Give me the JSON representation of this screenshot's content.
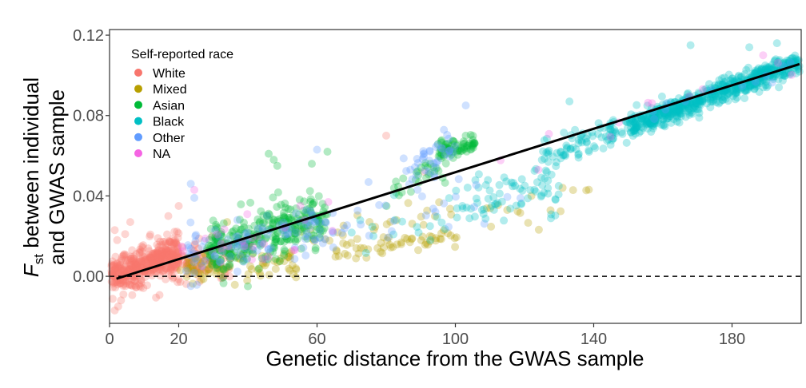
{
  "chart_data": {
    "type": "scatter",
    "title": "",
    "xlabel": "Genetic distance from the GWAS sample",
    "ylabel_main": "F",
    "ylabel_sub": "st",
    "ylabel_rest": " between individual",
    "ylabel_line2": "and GWAS sample",
    "xlim": [
      0,
      200
    ],
    "ylim": [
      -0.0234,
      0.1228
    ],
    "x_ticks": [
      0,
      20,
      60,
      100,
      140,
      180
    ],
    "x_tick_labels": [
      "0",
      "20",
      "60",
      "100",
      "140",
      "180"
    ],
    "y_ticks": [
      0.0,
      0.04,
      0.08,
      0.12
    ],
    "y_tick_labels": [
      "0.00",
      "0.04",
      "0.08",
      "0.12"
    ],
    "grid": false,
    "legend": {
      "title": "Self-reported race",
      "placement": "top-left",
      "entries": [
        {
          "key": "White",
          "label": "White",
          "color": "#F8766D"
        },
        {
          "key": "Mixed",
          "label": "Mixed",
          "color": "#B79F00"
        },
        {
          "key": "Asian",
          "label": "Asian",
          "color": "#00BA38"
        },
        {
          "key": "Black",
          "label": "Black",
          "color": "#00BFC4"
        },
        {
          "key": "Other",
          "label": "Other",
          "color": "#619CFF"
        },
        {
          "key": "NA",
          "label": "NA",
          "color": "#F564E3"
        }
      ]
    },
    "reference_line": {
      "y": 0.0,
      "style": "dashed",
      "color": "#000000"
    },
    "regression_line": {
      "x": [
        2,
        199.5
      ],
      "y": [
        -0.0012,
        0.1056
      ],
      "color": "#000000"
    },
    "point_alpha": 0.3,
    "clusters": [
      {
        "series": "White",
        "n": 420,
        "x_range": [
          0.5,
          20
        ],
        "y_at_start": 0.001,
        "y_at_end": 0.012,
        "y_sd": 0.0045
      },
      {
        "series": "White",
        "n": 120,
        "x_range": [
          15,
          35
        ],
        "y_at_start": 0.006,
        "y_at_end": 0.008,
        "y_sd": 0.005
      },
      {
        "series": "Mixed",
        "n": 90,
        "x_range": [
          20,
          55
        ],
        "y_at_start": 0.004,
        "y_at_end": 0.008,
        "y_sd": 0.004
      },
      {
        "series": "Mixed",
        "n": 50,
        "x_range": [
          65,
          100
        ],
        "y_at_start": 0.011,
        "y_at_end": 0.02,
        "y_sd": 0.0025
      },
      {
        "series": "Mixed",
        "n": 30,
        "x_range": [
          55,
          100
        ],
        "y_at_start": 0.018,
        "y_at_end": 0.033,
        "y_sd": 0.004
      },
      {
        "series": "Mixed",
        "n": 14,
        "x_range": [
          100,
          140
        ],
        "y_at_start": 0.028,
        "y_at_end": 0.04,
        "y_sd": 0.005
      },
      {
        "series": "Asian",
        "n": 320,
        "x_range": [
          28,
          63
        ],
        "y_at_start": 0.012,
        "y_at_end": 0.03,
        "y_sd": 0.006
      },
      {
        "series": "Asian",
        "n": 70,
        "x_range": [
          95,
          106
        ],
        "y_at_start": 0.062,
        "y_at_end": 0.066,
        "y_sd": 0.0022
      },
      {
        "series": "Asian",
        "n": 30,
        "x_range": [
          80,
          98
        ],
        "y_at_start": 0.04,
        "y_at_end": 0.058,
        "y_sd": 0.004
      },
      {
        "series": "Black",
        "n": 600,
        "x_range": [
          150,
          199.5
        ],
        "y_at_start": 0.074,
        "y_at_end": 0.107,
        "y_sd": 0.0028
      },
      {
        "series": "Black",
        "n": 90,
        "x_range": [
          125,
          152
        ],
        "y_at_start": 0.058,
        "y_at_end": 0.076,
        "y_sd": 0.004
      },
      {
        "series": "Black",
        "n": 40,
        "x_range": [
          100,
          130
        ],
        "y_at_start": 0.038,
        "y_at_end": 0.05,
        "y_sd": 0.004
      },
      {
        "series": "Black",
        "n": 25,
        "x_range": [
          110,
          130
        ],
        "y_at_start": 0.033,
        "y_at_end": 0.04,
        "y_sd": 0.004
      },
      {
        "series": "Black",
        "n": 25,
        "x_range": [
          70,
          110
        ],
        "y_at_start": 0.02,
        "y_at_end": 0.035,
        "y_sd": 0.006
      },
      {
        "series": "Other",
        "n": 110,
        "x_range": [
          22,
          65
        ],
        "y_at_start": 0.012,
        "y_at_end": 0.026,
        "y_sd": 0.006
      },
      {
        "series": "Other",
        "n": 40,
        "x_range": [
          85,
          100
        ],
        "y_at_start": 0.05,
        "y_at_end": 0.064,
        "y_sd": 0.005
      },
      {
        "series": "Other",
        "n": 25,
        "x_range": [
          65,
          120
        ],
        "y_at_start": 0.028,
        "y_at_end": 0.04,
        "y_sd": 0.008
      },
      {
        "series": "Other",
        "n": 12,
        "x_range": [
          150,
          199
        ],
        "y_at_start": 0.078,
        "y_at_end": 0.105,
        "y_sd": 0.003
      },
      {
        "series": "NA",
        "n": 25,
        "x_range": [
          20,
          65
        ],
        "y_at_start": 0.015,
        "y_at_end": 0.025,
        "y_sd": 0.008
      },
      {
        "series": "NA",
        "n": 10,
        "x_range": [
          90,
          199
        ],
        "y_at_start": 0.05,
        "y_at_end": 0.106,
        "y_sd": 0.004
      }
    ],
    "notable_points": [
      {
        "series": "White",
        "x": 1.5,
        "y": -0.017
      },
      {
        "series": "White",
        "x": 2.5,
        "y": -0.015
      },
      {
        "series": "White",
        "x": 3.3,
        "y": -0.012
      },
      {
        "series": "White",
        "x": 4.0,
        "y": -0.009
      },
      {
        "series": "White",
        "x": 9.0,
        "y": -0.0055
      },
      {
        "series": "White",
        "x": 1.5,
        "y": 0.023
      },
      {
        "series": "White",
        "x": 2.2,
        "y": 0.018
      },
      {
        "series": "White",
        "x": 4.5,
        "y": 0.021
      },
      {
        "series": "White",
        "x": 6.0,
        "y": 0.027
      },
      {
        "series": "White",
        "x": 17.0,
        "y": 0.03
      },
      {
        "series": "White",
        "x": 20.0,
        "y": 0.035
      },
      {
        "series": "White",
        "x": 80.0,
        "y": 0.07
      },
      {
        "series": "White",
        "x": 91.0,
        "y": 0.052
      },
      {
        "series": "Other",
        "x": 23.5,
        "y": 0.046
      },
      {
        "series": "Other",
        "x": 24.5,
        "y": 0.039
      },
      {
        "series": "Other",
        "x": 23.5,
        "y": -0.0048
      },
      {
        "series": "Other",
        "x": 103.0,
        "y": 0.085
      },
      {
        "series": "Other",
        "x": 60.0,
        "y": 0.063
      },
      {
        "series": "NA",
        "x": 24.5,
        "y": 0.043
      },
      {
        "series": "NA",
        "x": 124.0,
        "y": 0.053
      },
      {
        "series": "NA",
        "x": 189.0,
        "y": 0.11
      },
      {
        "series": "Asian",
        "x": 46.0,
        "y": 0.061
      },
      {
        "series": "Asian",
        "x": 47.5,
        "y": 0.058
      },
      {
        "series": "Asian",
        "x": 48.5,
        "y": 0.055
      },
      {
        "series": "Asian",
        "x": 58.5,
        "y": 0.056
      },
      {
        "series": "Asian",
        "x": 63.0,
        "y": 0.062
      },
      {
        "series": "Asian",
        "x": 103.0,
        "y": 0.07
      },
      {
        "series": "Black",
        "x": 133.0,
        "y": 0.087
      },
      {
        "series": "Black",
        "x": 168.0,
        "y": 0.115
      },
      {
        "series": "Black",
        "x": 193.0,
        "y": 0.116
      },
      {
        "series": "Black",
        "x": 185.0,
        "y": 0.114
      },
      {
        "series": "Black",
        "x": 138.0,
        "y": 0.0665
      },
      {
        "series": "Mixed",
        "x": 131.0,
        "y": 0.044
      },
      {
        "series": "Mixed",
        "x": 115.0,
        "y": 0.033
      },
      {
        "series": "Mixed",
        "x": 122.0,
        "y": 0.04
      },
      {
        "series": "Mixed",
        "x": 34.0,
        "y": 0.027
      }
    ]
  }
}
